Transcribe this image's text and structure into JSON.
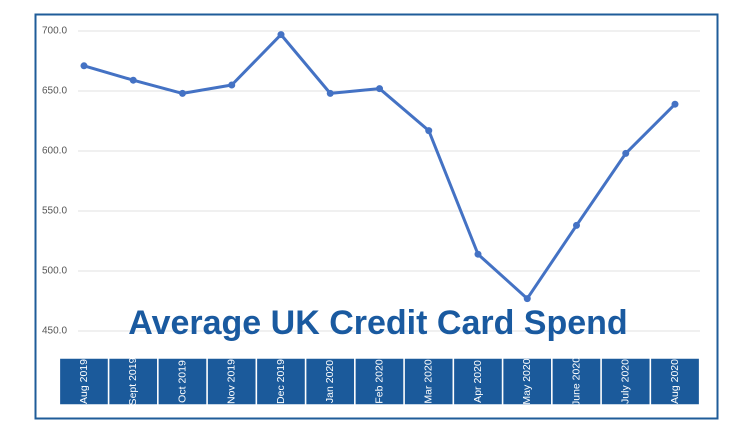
{
  "chart_data": {
    "type": "line",
    "title": "Average UK Credit Card Spend",
    "categories": [
      "Aug 2019",
      "Sept 2019",
      "Oct 2019",
      "Nov 2019",
      "Dec 2019",
      "Jan 2020",
      "Feb 2020",
      "Mar 2020",
      "Apr 2020",
      "May 2020",
      "June 2020",
      "July 2020",
      "Aug 2020"
    ],
    "values": [
      671,
      659,
      648,
      655,
      697,
      648,
      652,
      617,
      514,
      477,
      538,
      598,
      639
    ],
    "color": "#4472c4",
    "ylim": [
      450,
      700
    ],
    "yticks": [
      {
        "value": 450,
        "label": "450.0"
      },
      {
        "value": 500,
        "label": "500.0"
      },
      {
        "value": 550,
        "label": "550.0"
      },
      {
        "value": 600,
        "label": "600.0"
      },
      {
        "value": 650,
        "label": "650.0"
      },
      {
        "value": 700,
        "label": "700.0"
      }
    ],
    "grid": true
  }
}
